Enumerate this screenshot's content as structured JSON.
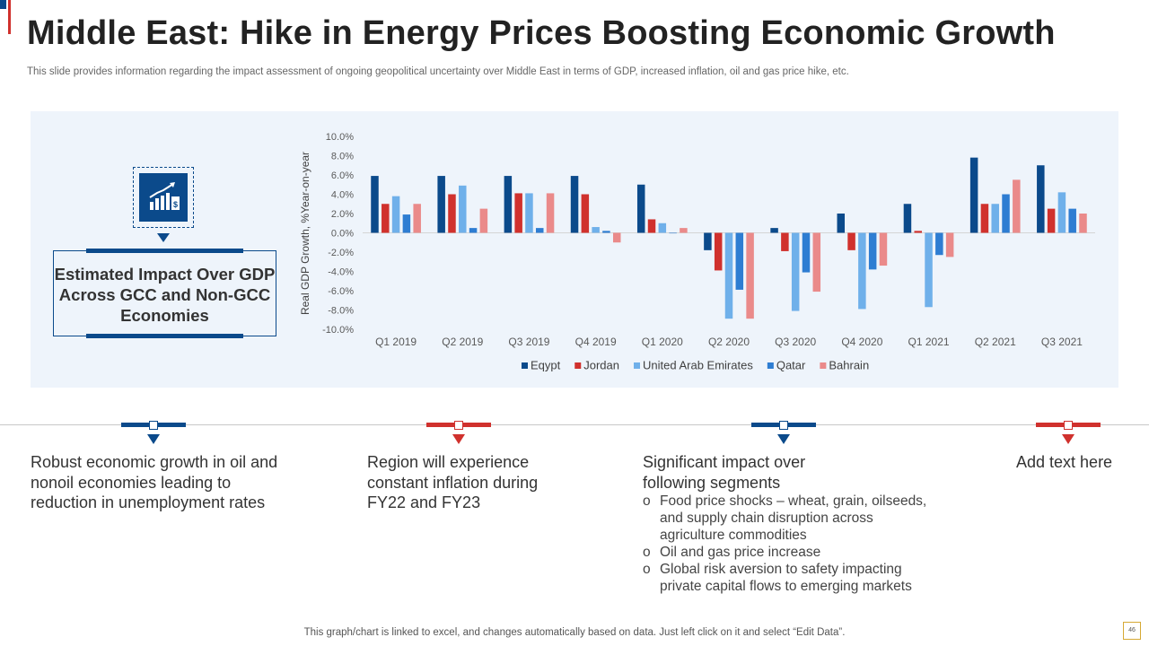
{
  "header": {
    "title": "Middle East: Hike in Energy Prices Boosting Economic Growth",
    "subtitle": "This slide provides information regarding the impact assessment of ongoing geopolitical uncertainty over Middle East in terms of GDP, increased inflation, oil and gas price hike, etc."
  },
  "impact_label": "Estimated Impact Over GDP Across GCC and Non-GCC Economies",
  "icon": {
    "name": "growth-chart-dollar-icon"
  },
  "colors": {
    "primary_blue": "#0b4a8b",
    "accent_red": "#d0312d",
    "panel_bg": "#eef4fb"
  },
  "chart_data": {
    "type": "bar",
    "title": "",
    "xlabel": "",
    "ylabel": "Real GDP Growth, %Year-on-year",
    "ylim": [
      -10,
      10
    ],
    "yticks": [
      10,
      8,
      6,
      4,
      2,
      0,
      -2,
      -4,
      -6,
      -8,
      -10
    ],
    "ytick_labels": [
      "10.0%",
      "8.0%",
      "6.0%",
      "4.0%",
      "2.0%",
      "0.0%",
      "-2.0%",
      "-4.0%",
      "-6.0%",
      "-8.0%",
      "-10.0%"
    ],
    "grid": false,
    "legend_position": "bottom",
    "categories": [
      "Q1 2019",
      "Q2 2019",
      "Q3 2019",
      "Q4 2019",
      "Q1 2020",
      "Q2 2020",
      "Q3 2020",
      "Q4 2020",
      "Q1 2021",
      "Q2 2021",
      "Q3 2021"
    ],
    "series": [
      {
        "name": "Eqypt",
        "color": "#0b4a8b",
        "values": [
          5.9,
          5.9,
          5.9,
          5.9,
          5.0,
          -1.8,
          0.5,
          2.0,
          3.0,
          7.8,
          7.0
        ]
      },
      {
        "name": "Jordan",
        "color": "#d0312d",
        "values": [
          3.0,
          4.0,
          4.1,
          4.0,
          1.4,
          -3.9,
          -1.9,
          -1.8,
          0.2,
          3.0,
          2.5
        ]
      },
      {
        "name": "United Arab Emirates",
        "color": "#6fb0ea",
        "values": [
          3.8,
          4.9,
          4.1,
          0.6,
          1.0,
          -8.9,
          -8.1,
          -7.9,
          -7.7,
          3.0,
          4.2
        ]
      },
      {
        "name": "Qatar",
        "color": "#2e7dd2",
        "values": [
          1.9,
          0.5,
          0.5,
          0.2,
          0.0,
          -5.9,
          -4.1,
          -3.8,
          -2.3,
          4.0,
          2.5
        ]
      },
      {
        "name": "Bahrain",
        "color": "#ea8a8a",
        "values": [
          3.0,
          2.5,
          4.1,
          -1.0,
          0.5,
          -8.9,
          -6.1,
          -3.4,
          -2.5,
          5.5,
          2.0
        ]
      }
    ]
  },
  "columns": [
    {
      "heading": "Robust economic growth in oil and nonoil economies leading to reduction in unemployment rates"
    },
    {
      "heading": "Region will experience constant inflation during FY22 and FY23"
    },
    {
      "heading": "Significant impact over following segments",
      "bullets": [
        "Food price shocks – wheat, grain, oilseeds, and supply chain disruption across agriculture commodities",
        "Oil and gas price increase",
        "Global risk aversion to safety impacting private capital flows to emerging markets"
      ]
    },
    {
      "heading": "Add text here"
    }
  ],
  "footer": {
    "note": "This graph/chart is linked to excel, and changes automatically based on data. Just left click on it and select “Edit Data”.",
    "page_number": "46"
  }
}
